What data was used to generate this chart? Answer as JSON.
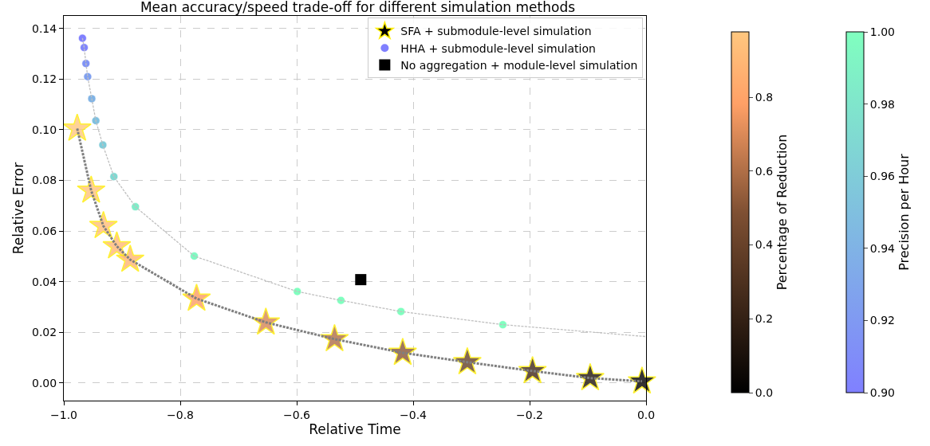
{
  "chart_data": [
    {
      "type": "scatter",
      "title": "Mean accuracy/speed trade-off for different simulation methods",
      "xlabel": "Relative Time",
      "ylabel": "Relative Error",
      "xlim": [
        -1.0,
        0.0
      ],
      "ylim": [
        -0.007,
        0.145
      ],
      "xticks": [
        {
          "value": -1.0,
          "label": "−1.0"
        },
        {
          "value": -0.8,
          "label": "−0.8"
        },
        {
          "value": -0.6,
          "label": "−0.6"
        },
        {
          "value": -0.4,
          "label": "−0.4"
        },
        {
          "value": -0.2,
          "label": "−0.2"
        },
        {
          "value": 0.0,
          "label": "0.0"
        }
      ],
      "yticks": [
        {
          "value": 0,
          "label": "0.00"
        },
        {
          "value": 0.02,
          "label": "0.02"
        },
        {
          "value": 0.04,
          "label": "0.04"
        },
        {
          "value": 0.06,
          "label": "0.06"
        },
        {
          "value": 0.08,
          "label": "0.08"
        },
        {
          "value": 0.1,
          "label": "0.10"
        },
        {
          "value": 0.12,
          "label": "0.12"
        },
        {
          "value": 0.14,
          "label": "0.14"
        }
      ],
      "grid": true,
      "legend": "top right",
      "clabel": "Percentage of Reduction",
      "clim": [
        0,
        0.977
      ],
      "cticks": [
        {
          "value": 0,
          "label": "0.0"
        },
        {
          "value": 0.2,
          "label": "0.2"
        },
        {
          "value": 0.4,
          "label": "0.4"
        },
        {
          "value": 0.6,
          "label": "0.6"
        },
        {
          "value": 0.8,
          "label": "0.8"
        }
      ],
      "series": [
        {
          "type": "line",
          "line_style": "dashed",
          "color": "#7f7f7f",
          "x": [
            -0.977,
            -0.953,
            -0.932,
            -0.909,
            -0.886,
            -0.772,
            -0.653,
            -0.535,
            -0.418,
            -0.307,
            -0.195,
            -0.096,
            -0.007
          ],
          "values": [
            0.1005,
            0.076,
            0.062,
            0.054,
            0.0487,
            0.0333,
            0.0239,
            0.0173,
            0.0119,
            0.0082,
            0.0047,
            0.0019,
            0.0006
          ]
        },
        {
          "name": "SFA + submodule-level simulation",
          "marker": "star",
          "x": [
            -0.977,
            -0.953,
            -0.932,
            -0.909,
            -0.886,
            -0.772,
            -0.653,
            -0.535,
            -0.418,
            -0.307,
            -0.195,
            -0.096,
            -0.007
          ],
          "values": [
            0.1005,
            0.076,
            0.062,
            0.054,
            0.0487,
            0.0333,
            0.0239,
            0.0173,
            0.0119,
            0.0082,
            0.0047,
            0.0019,
            0.0006
          ],
          "colors": [
            "#ffc77f",
            "#ffc27c",
            "#ffbe79",
            "#ffb976",
            "#ffb573",
            "#fc9d64",
            "#d58555",
            "#af6d46",
            "#885536",
            "#643f28",
            "#402819",
            "#1f140c",
            "#020101"
          ]
        },
        {
          "name": "No aggregation + module-level simulation",
          "marker": "square",
          "color": "#000000",
          "x": [
            -0.49
          ],
          "values": [
            0.0408
          ]
        }
      ]
    },
    {
      "type": "scatter",
      "xlim": [
        -1.0,
        0.0
      ],
      "ylim": [
        -0.007,
        0.145
      ],
      "tick_labels": false,
      "legend": "top right",
      "clabel": "Precision per Hour",
      "clim": [
        0.9,
        1.0
      ],
      "cticks": [
        {
          "value": 0.9,
          "label": "0.90"
        },
        {
          "value": 0.92,
          "label": "0.92"
        },
        {
          "value": 0.94,
          "label": "0.94"
        },
        {
          "value": 0.96,
          "label": "0.96"
        },
        {
          "value": 0.98,
          "label": "0.98"
        },
        {
          "value": 1.0,
          "label": "1.00"
        }
      ],
      "series": [
        {
          "type": "line",
          "line_style": "dashed",
          "color": "#bfbfbf",
          "x": [
            -0.968,
            -0.965,
            -0.962,
            -0.959,
            -0.952,
            -0.945,
            -0.933,
            -0.914,
            -0.877,
            -0.776,
            -0.599,
            -0.524,
            -0.421,
            -0.246,
            0.0
          ],
          "values": [
            0.1362,
            0.1325,
            0.1262,
            0.121,
            0.1123,
            0.1036,
            0.094,
            0.0815,
            0.0696,
            0.0501,
            0.0361,
            0.0326,
            0.0282,
            0.023,
            0.0183
          ]
        },
        {
          "name": "HHA + submodule-level simulation",
          "marker": "circle",
          "x": [
            -0.968,
            -0.965,
            -0.962,
            -0.959,
            -0.952,
            -0.945,
            -0.933,
            -0.914,
            -0.877,
            -0.776,
            -0.599,
            -0.524,
            -0.421,
            -0.246
          ],
          "values": [
            0.1362,
            0.1325,
            0.1262,
            0.121,
            0.1123,
            0.1036,
            0.094,
            0.0815,
            0.0696,
            0.0501,
            0.0361,
            0.0326,
            0.0282,
            0.023
          ],
          "colors": [
            "#8080ff",
            "#8086fc",
            "#8093f5",
            "#80a0ef",
            "#80b3e5",
            "#80c0df",
            "#80ccd9",
            "#80d9d2",
            "#80ecc9",
            "#80f9c2",
            "#80ffbf",
            "#80ffbf",
            "#80ffbf",
            "#80ffbf"
          ]
        }
      ]
    }
  ]
}
